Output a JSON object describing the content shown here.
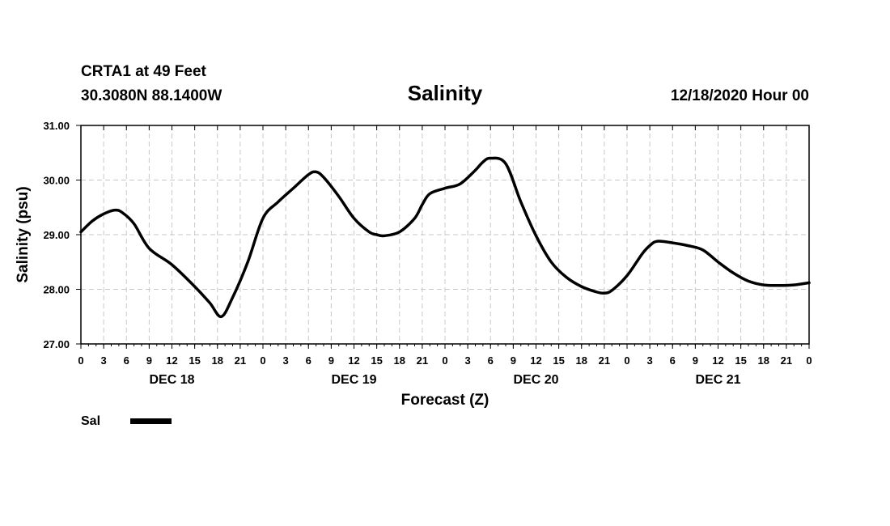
{
  "header": {
    "station": "CRTA1 at 49 Feet",
    "coords": "30.3080N 88.1400W",
    "title": "Salinity",
    "datetime": "12/18/2020 Hour 00"
  },
  "chart_data": {
    "type": "line",
    "title": "Salinity",
    "xlabel": "Forecast (Z)",
    "ylabel": "Salinity (psu)",
    "ylim": [
      27.0,
      31.0
    ],
    "yticks": [
      "27.00",
      "28.00",
      "29.00",
      "30.00",
      "31.00"
    ],
    "xlim": [
      0,
      96
    ],
    "xtick_labels": [
      "0",
      "3",
      "6",
      "9",
      "12",
      "15",
      "18",
      "21",
      "0",
      "3",
      "6",
      "9",
      "12",
      "15",
      "18",
      "21",
      "0",
      "3",
      "6",
      "9",
      "12",
      "15",
      "18",
      "21",
      "0",
      "3",
      "6",
      "9",
      "12",
      "15",
      "18",
      "21",
      "0"
    ],
    "day_labels": [
      {
        "label": "DEC 18",
        "hour": 12
      },
      {
        "label": "DEC 19",
        "hour": 36
      },
      {
        "label": "DEC 20",
        "hour": 60
      },
      {
        "label": "DEC 21",
        "hour": 84
      }
    ],
    "grid": true,
    "series": [
      {
        "name": "Sal",
        "x": [
          0,
          1.5,
          3,
          4.5,
          5.5,
          7,
          9,
          12,
          15,
          17,
          18.5,
          20,
          22,
          24,
          26,
          28,
          30,
          31,
          32,
          34,
          36,
          38,
          39,
          40,
          42,
          44,
          45,
          46,
          48,
          50,
          52,
          53,
          54,
          56,
          58,
          60,
          62,
          64,
          66,
          68,
          69,
          70,
          72,
          74,
          75,
          76,
          78,
          80,
          82,
          84,
          86,
          88,
          90,
          92,
          94,
          96
        ],
        "values": [
          29.05,
          29.25,
          29.38,
          29.45,
          29.4,
          29.2,
          28.75,
          28.45,
          28.05,
          27.75,
          27.5,
          27.85,
          28.5,
          29.3,
          29.6,
          29.85,
          30.1,
          30.15,
          30.05,
          29.7,
          29.3,
          29.05,
          29.0,
          28.98,
          29.05,
          29.3,
          29.55,
          29.75,
          29.85,
          29.93,
          30.18,
          30.33,
          30.4,
          30.3,
          29.6,
          28.98,
          28.5,
          28.22,
          28.05,
          27.95,
          27.93,
          27.98,
          28.25,
          28.65,
          28.8,
          28.88,
          28.85,
          28.8,
          28.72,
          28.5,
          28.3,
          28.15,
          28.08,
          28.07,
          28.08,
          28.12
        ]
      }
    ],
    "legend": {
      "position": "bottom-left",
      "entries": [
        "Sal"
      ]
    }
  }
}
